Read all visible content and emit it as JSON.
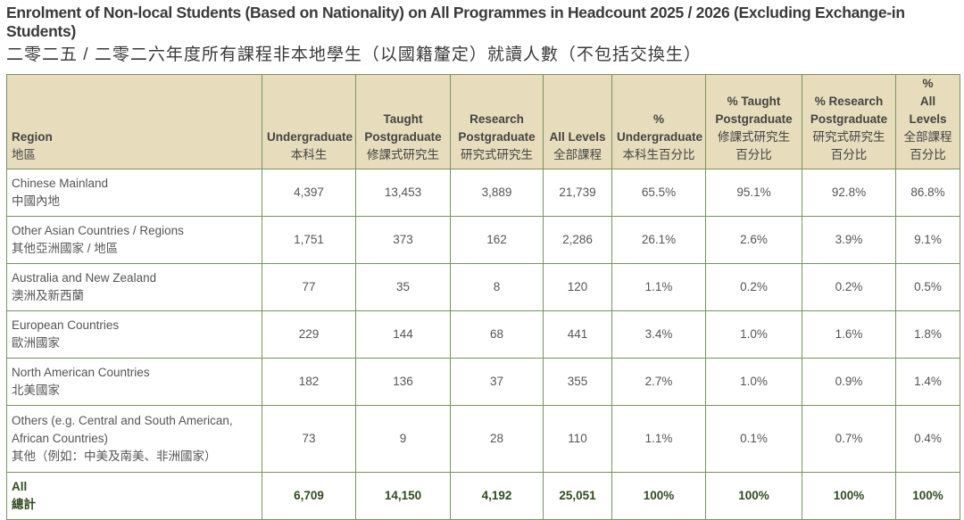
{
  "title": "Enrolment of Non-local Students (Based on Nationality) on All Programmes in Headcount 2025 / 2026 (Excluding Exchange-in Students)",
  "title_zh": "二零二五 / 二零二六年度所有課程非本地學生（以國籍釐定）就讀人數（不包括交換生）",
  "headers": [
    {
      "en": [
        "Region"
      ],
      "zh": [
        "地區"
      ]
    },
    {
      "en": [
        "Undergraduate"
      ],
      "zh": [
        "本科生"
      ]
    },
    {
      "en": [
        "Taught",
        "Postgraduate"
      ],
      "zh": [
        "修課式研究生"
      ]
    },
    {
      "en": [
        "Research",
        "Postgraduate"
      ],
      "zh": [
        "研究式研究生"
      ]
    },
    {
      "en": [
        "All Levels"
      ],
      "zh": [
        "全部課程"
      ]
    },
    {
      "en": [
        "%",
        "Undergraduate"
      ],
      "zh": [
        "本科生百分比"
      ]
    },
    {
      "en": [
        "% Taught",
        "Postgraduate"
      ],
      "zh": [
        "修課式研究生",
        "百分比"
      ]
    },
    {
      "en": [
        "% Research",
        "Postgraduate"
      ],
      "zh": [
        "研究式研究生",
        "百分比"
      ]
    },
    {
      "en": [
        "%",
        "All Levels"
      ],
      "zh": [
        "全部課程",
        "百分比"
      ]
    }
  ],
  "rows": [
    {
      "en": "Chinese Mainland",
      "zh": "中國內地",
      "values": [
        "4,397",
        "13,453",
        "3,889",
        "21,739",
        "65.5%",
        "95.1%",
        "92.8%",
        "86.8%"
      ]
    },
    {
      "en": "Other Asian Countries / Regions",
      "zh": "其他亞洲國家 / 地區",
      "values": [
        "1,751",
        "373",
        "162",
        "2,286",
        "26.1%",
        "2.6%",
        "3.9%",
        "9.1%"
      ]
    },
    {
      "en": "Australia and New Zealand",
      "zh": "澳洲及新西蘭",
      "values": [
        "77",
        "35",
        "8",
        "120",
        "1.1%",
        "0.2%",
        "0.2%",
        "0.5%"
      ]
    },
    {
      "en": "European Countries",
      "zh": "歐洲國家",
      "values": [
        "229",
        "144",
        "68",
        "441",
        "3.4%",
        "1.0%",
        "1.6%",
        "1.8%"
      ]
    },
    {
      "en": "North American Countries",
      "zh": "北美國家",
      "values": [
        "182",
        "136",
        "37",
        "355",
        "2.7%",
        "1.0%",
        "0.9%",
        "1.4%"
      ]
    },
    {
      "en": "Others (e.g. Central and South American, African Countries)",
      "zh": "其他（例如：中美及南美、非洲國家）",
      "values": [
        "73",
        "9",
        "28",
        "110",
        "1.1%",
        "0.1%",
        "0.7%",
        "0.4%"
      ]
    }
  ],
  "total": {
    "en": "All",
    "zh": "總計",
    "values": [
      "6,709",
      "14,150",
      "4,192",
      "25,051",
      "100%",
      "100%",
      "100%",
      "100%"
    ]
  }
}
